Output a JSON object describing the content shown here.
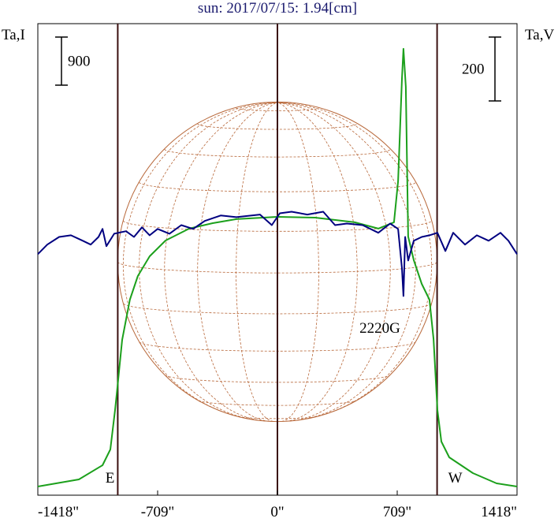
{
  "chart_data": {
    "type": "line",
    "title": "sun: 2017/07/15: 1.94[cm]",
    "y_label": "Ta,I",
    "y2_label": "Ta,V",
    "xlim": [
      -1418,
      1418
    ],
    "xticks": [
      {
        "value": -1418,
        "label": "-1418\""
      },
      {
        "value": -709,
        "label": "-709\""
      },
      {
        "value": 0,
        "label": "0\""
      },
      {
        "value": 709,
        "label": "709\""
      },
      {
        "value": 1418,
        "label": "1418\""
      }
    ],
    "ylim": [
      0,
      8820
    ],
    "y2lim": [
      -755,
      722
    ],
    "limb_lines": [
      -945,
      0,
      945
    ],
    "scale_bars": [
      {
        "value": 900,
        "axis": "y"
      },
      {
        "value": 200,
        "axis": "y2"
      }
    ],
    "annotations": [
      {
        "text": "E",
        "x": -945
      },
      {
        "text": "W",
        "x": 945
      },
      {
        "text": "2220G",
        "x": 746
      }
    ],
    "series": [
      {
        "name": "Ta,I",
        "color": "#1ca01c",
        "axis": "y",
        "x": [
          -1418,
          -1175,
          -1035,
          -989,
          -961,
          -947,
          -919,
          -873,
          -826,
          -756,
          -662,
          -522,
          -383,
          -243,
          0,
          224,
          457,
          597,
          690,
          714,
          737,
          746,
          760,
          774,
          807,
          854,
          900,
          924,
          947,
          970,
          1017,
          1157,
          1297,
          1418
        ],
        "values": [
          162,
          295,
          560,
          856,
          1593,
          2021,
          2906,
          3658,
          4101,
          4469,
          4764,
          4986,
          5089,
          5163,
          5207,
          5192,
          5104,
          4986,
          5104,
          5871,
          7788,
          8349,
          7640,
          4838,
          4396,
          3953,
          3658,
          2921,
          1593,
          1003,
          708,
          413,
          221,
          162
        ]
      },
      {
        "name": "Ta,V",
        "color": "#000080",
        "axis": "y2",
        "x": [
          -1418,
          -1362,
          -1292,
          -1222,
          -1152,
          -1105,
          -1059,
          -1035,
          -1012,
          -966,
          -896,
          -849,
          -802,
          -756,
          -709,
          -639,
          -569,
          -499,
          -430,
          -336,
          -243,
          -103,
          -33,
          14,
          84,
          177,
          271,
          341,
          411,
          504,
          597,
          667,
          714,
          737,
          746,
          756,
          774,
          807,
          854,
          900,
          947,
          994,
          1040,
          1110,
          1180,
          1250,
          1320,
          1367,
          1418
        ],
        "values": [
          0,
          30,
          54,
          59,
          42,
          30,
          54,
          79,
          25,
          64,
          72,
          54,
          84,
          59,
          79,
          64,
          91,
          79,
          104,
          121,
          116,
          124,
          91,
          128,
          133,
          124,
          133,
          91,
          96,
          91,
          67,
          96,
          79,
          -44,
          -131,
          54,
          -20,
          42,
          54,
          59,
          67,
          10,
          67,
          30,
          59,
          42,
          67,
          42,
          0
        ]
      }
    ]
  }
}
